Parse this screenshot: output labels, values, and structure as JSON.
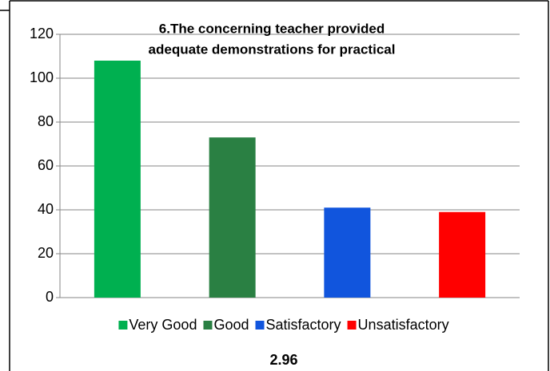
{
  "chart_data": {
    "type": "bar",
    "title": [
      "6.The concerning teacher provided",
      "adequate demonstrations for practical"
    ],
    "categories": [
      "Very Good",
      "Good",
      "Satisfactory",
      "Unsatisfactory"
    ],
    "values": [
      108,
      73,
      41,
      39
    ],
    "colors": [
      "#00b050",
      "#2a8043",
      "#1155dd",
      "#ff0000"
    ],
    "ylim": [
      0,
      120
    ],
    "yticks": [
      0,
      20,
      40,
      60,
      80,
      100,
      120
    ],
    "grid": true,
    "legend": "bottom",
    "annotation": "2.96"
  }
}
